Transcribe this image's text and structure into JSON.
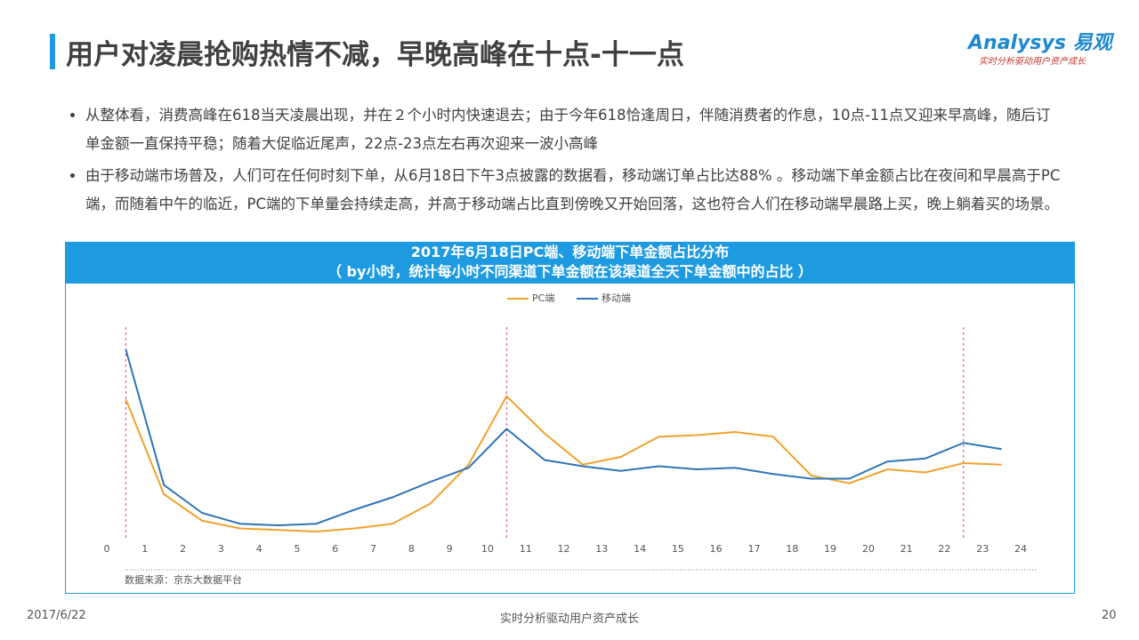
{
  "header": {
    "title": "用户对凌晨抢购热情不减，早晚高峰在十点-十一点",
    "logo": "Analysys",
    "logo_cn": "易观",
    "tagline": "实时分析驱动用户资产成长"
  },
  "bullets": [
    "从整体看，消费高峰在618当天凌晨出现，并在２个小时内快速退去；由于今年618恰逢周日，伴随消费者的作息，10点-11点又迎来早高峰，随后订单金额一直保持平稳；随着大促临近尾声，22点-23点左右再次迎来一波小高峰",
    "由于移动端市场普及，人们可在任何时刻下单，从6月18日下午3点披露的数据看，移动端订单占比达88% 。移动端下单金额占比在夜间和早晨高于PC端，而随着中午的临近，PC端的下单量会持续走高，并高于移动端占比直到傍晚又开始回落，这也符合人们在移动端早晨路上买，晚上躺着买的场景。"
  ],
  "chart_data": {
    "type": "line",
    "title": "2017年6月18日PC端、移动端下单金额占比分布",
    "subtitle": "（ by小时，统计每小时不同渠道下单金额在该渠道全天下单金额中的占比 ）",
    "x": [
      0.5,
      1.5,
      2.5,
      3.5,
      4.5,
      5.5,
      6.5,
      7.5,
      8.5,
      9.5,
      10.5,
      11.5,
      12.5,
      13.5,
      14.5,
      15.5,
      16.5,
      17.5,
      18.5,
      19.5,
      20.5,
      21.5,
      22.5,
      23.5
    ],
    "series": [
      {
        "name": "PC端",
        "color": "#f0a22e",
        "values": [
          8.9,
          2.8,
          1.1,
          0.6,
          0.5,
          0.4,
          0.6,
          0.9,
          2.2,
          4.7,
          9.1,
          6.7,
          4.7,
          5.2,
          6.5,
          6.6,
          6.8,
          6.5,
          4.0,
          3.5,
          4.4,
          4.2,
          4.8,
          4.7
        ]
      },
      {
        "name": "移动端",
        "color": "#2e75b6",
        "values": [
          12.1,
          3.4,
          1.6,
          0.9,
          0.8,
          0.9,
          1.8,
          2.6,
          3.6,
          4.5,
          7.0,
          5.0,
          4.6,
          4.3,
          4.6,
          4.4,
          4.5,
          4.1,
          3.8,
          3.8,
          4.9,
          5.1,
          6.1,
          5.7
        ]
      }
    ],
    "xlim": [
      0,
      24
    ],
    "xticks": [
      0,
      1,
      2,
      3,
      4,
      5,
      6,
      7,
      8,
      9,
      10,
      11,
      12,
      13,
      14,
      15,
      16,
      17,
      18,
      19,
      20,
      21,
      22,
      23,
      24
    ],
    "ylim": [
      0,
      13
    ],
    "markers": [
      0.5,
      10.5,
      22.5
    ],
    "legend": "top",
    "source": "数据来源：京东大数据平台"
  },
  "footer": {
    "date": "2017/6/22",
    "slogan": "实时分析驱动用户资产成长",
    "page": "20"
  }
}
